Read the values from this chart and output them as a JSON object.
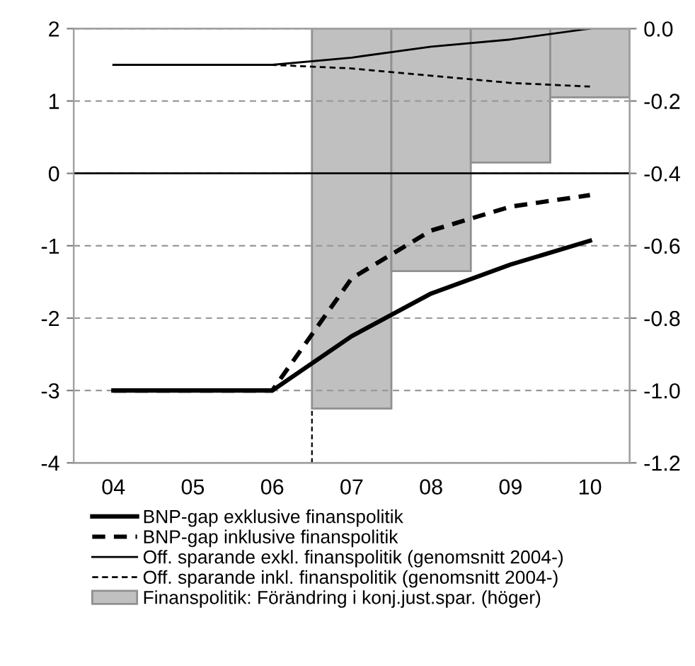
{
  "chart_data": {
    "type": "line",
    "categories": [
      "04",
      "05",
      "06",
      "07",
      "08",
      "09",
      "10"
    ],
    "ylim": [
      -4,
      2
    ],
    "yticks": [
      -4,
      -3,
      -2,
      -1,
      0,
      1,
      2
    ],
    "y2lim": [
      -1.2,
      0.0
    ],
    "y2ticks": [
      {
        "value": -1.2,
        "label": "-1.2"
      },
      {
        "value": -1.0,
        "label": "-1.0"
      },
      {
        "value": -0.8,
        "label": "-0.8"
      },
      {
        "value": -0.6,
        "label": "-0.6"
      },
      {
        "value": -0.4,
        "label": "-0.4"
      },
      {
        "value": -0.2,
        "label": "-0.2"
      },
      {
        "value": 0.0,
        "label": "0.0"
      }
    ],
    "grid": "y",
    "legend": "bottom",
    "series": [
      {
        "name": "Finanspolitik: Förändring i konj.just.spar. (höger)",
        "type": "bar",
        "axis": "y2",
        "color": "#c0c0c0",
        "values": [
          null,
          null,
          null,
          -1.05,
          -0.67,
          -0.37,
          -0.19
        ]
      },
      {
        "name": "BNP-gap exklusive finanspolitik",
        "color": "#000000",
        "line_style": "solid",
        "values": [
          -3,
          -3,
          -3,
          -2.25,
          -1.66,
          -1.26,
          -0.93
        ]
      },
      {
        "name": "BNP-gap inklusive finanspolitik",
        "color": "#000000",
        "line_style": "dashed",
        "values": [
          -3,
          -3,
          -3,
          -1.45,
          -0.79,
          -0.46,
          -0.3
        ]
      },
      {
        "name": "Off. sparande exkl. finanspolitik (genomsnitt 2004-)",
        "axis": "y2",
        "color": "#000000",
        "line_style": "solid",
        "values": [
          -0.1,
          -0.1,
          -0.1,
          -0.08,
          -0.05,
          -0.03,
          0.0
        ]
      },
      {
        "name": "Off. sparande inkl. finanspolitik (genomsnitt 2004-)",
        "axis": "y2",
        "color": "#000000",
        "line_style": "dashed",
        "values": [
          -0.1,
          -0.1,
          -0.1,
          -0.11,
          -0.13,
          -0.15,
          -0.16
        ]
      }
    ],
    "ref_lines": [
      {
        "axis": "y",
        "value": 0,
        "color": "#000000",
        "line_style": "solid"
      }
    ]
  }
}
